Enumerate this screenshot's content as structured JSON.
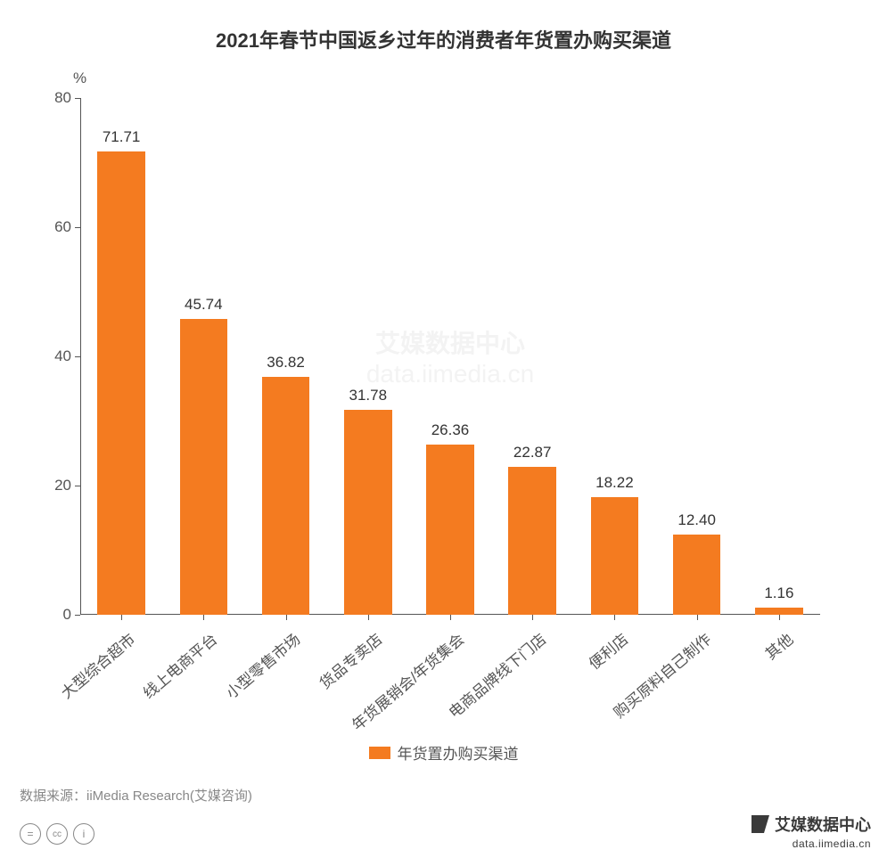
{
  "chart": {
    "type": "bar",
    "title": "2021年春节中国返乡过年的消费者年货置办购买渠道",
    "title_fontsize": 22,
    "y_unit": "%",
    "y_axis": {
      "min": 0,
      "max": 80,
      "ticks": [
        0,
        20,
        40,
        60,
        80
      ],
      "label_fontsize": 17,
      "color": "#555555"
    },
    "x_axis": {
      "label_fontsize": 17,
      "rotation_deg": -40,
      "color": "#555555"
    },
    "categories": [
      "大型综合超市",
      "线上电商平台",
      "小型零售市场",
      "货品专卖店",
      "年货展销会/年货集会",
      "电商品牌线下门店",
      "便利店",
      "购买原料自己制作",
      "其他"
    ],
    "values": [
      71.71,
      45.74,
      36.82,
      31.78,
      26.36,
      22.87,
      18.22,
      12.4,
      1.16
    ],
    "bar_color": "#f47b20",
    "bar_width_ratio": 0.58,
    "value_label_fontsize": 17,
    "value_label_color": "#333333",
    "background_color": "#ffffff",
    "axis_line_color": "#555555"
  },
  "legend": {
    "label": "年货置办购买渠道",
    "swatch_color": "#f47b20",
    "fontsize": 17
  },
  "source": {
    "prefix": "数据来源：",
    "text": "iiMedia Research(艾媒咨询)",
    "fontsize": 15,
    "color": "#888888"
  },
  "license_icons": [
    "=",
    "cc",
    "i"
  ],
  "brand_watermark": {
    "line1": "艾媒数据中心",
    "line2": "data.iimedia.cn",
    "fontsize_line1": 18,
    "fontsize_line2": 12,
    "color": "#3a3a3a"
  },
  "center_watermark": {
    "line1": "艾媒数据中心",
    "line2": "data.iimedia.cn",
    "fontsize": 28
  }
}
